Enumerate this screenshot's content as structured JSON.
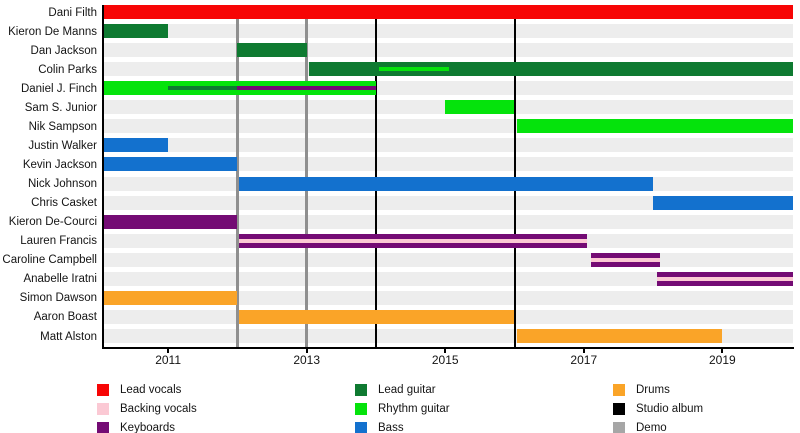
{
  "chart_data": {
    "type": "timeline",
    "description": "Band members tenure timeline with role colors, demo and studio album markers",
    "axis": {
      "start": 2010.06,
      "end": 2020.02,
      "ticks": [
        2011,
        2013,
        2015,
        2017,
        2019
      ],
      "grid": false
    },
    "events": [
      {
        "label": "Demo",
        "year": 2012.0,
        "role": "demo_line"
      },
      {
        "label": "Demo",
        "year": 2013.0,
        "role": "demo_line"
      },
      {
        "label": "Studio album",
        "year": 2014.0,
        "role": "studio_album"
      },
      {
        "label": "Studio album",
        "year": 2016.0,
        "role": "studio_album"
      }
    ],
    "members": [
      {
        "name": "Dani Filth",
        "bars": [
          {
            "role": "lead_vocals",
            "from": 2010.06,
            "to": 2020.02
          }
        ],
        "stripes": []
      },
      {
        "name": "Kieron De Manns",
        "bars": [
          {
            "role": "lead_guitar",
            "from": 2010.06,
            "to": 2011.0
          }
        ],
        "stripes": []
      },
      {
        "name": "Dan Jackson",
        "bars": [
          {
            "role": "lead_guitar",
            "from": 2012.0,
            "to": 2013.0
          }
        ],
        "stripes": []
      },
      {
        "name": "Colin Parks",
        "bars": [
          {
            "role": "lead_guitar",
            "from": 2013.03,
            "to": 2020.02
          }
        ],
        "stripes": [
          {
            "role": "rhythm_guitar",
            "from": 2014.05,
            "to": 2015.05
          }
        ]
      },
      {
        "name": "Daniel J. Finch",
        "bars": [
          {
            "role": "rhythm_guitar",
            "from": 2010.06,
            "to": 2014.0
          }
        ],
        "stripes": [
          {
            "role": "lead_guitar",
            "from": 2011.0,
            "to": 2012.0
          },
          {
            "role": "keyboards",
            "from": 2012.0,
            "to": 2014.0
          }
        ]
      },
      {
        "name": "Sam S. Junior",
        "bars": [
          {
            "role": "rhythm_guitar",
            "from": 2015.0,
            "to": 2016.0
          }
        ],
        "stripes": []
      },
      {
        "name": "Nik Sampson",
        "bars": [
          {
            "role": "rhythm_guitar",
            "from": 2016.04,
            "to": 2020.02
          }
        ],
        "stripes": []
      },
      {
        "name": "Justin Walker",
        "bars": [
          {
            "role": "bass",
            "from": 2010.06,
            "to": 2011.0
          }
        ],
        "stripes": []
      },
      {
        "name": "Kevin Jackson",
        "bars": [
          {
            "role": "bass",
            "from": 2010.06,
            "to": 2012.0
          }
        ],
        "stripes": []
      },
      {
        "name": "Nick Johnson",
        "bars": [
          {
            "role": "bass",
            "from": 2012.03,
            "to": 2018.0
          }
        ],
        "stripes": []
      },
      {
        "name": "Chris Casket",
        "bars": [
          {
            "role": "bass",
            "from": 2018.0,
            "to": 2020.02
          }
        ],
        "stripes": []
      },
      {
        "name": "Kieron De-Courci",
        "bars": [
          {
            "role": "keyboards",
            "from": 2010.06,
            "to": 2012.0
          }
        ],
        "stripes": []
      },
      {
        "name": "Lauren Francis",
        "bars": [
          {
            "role": "keyboards",
            "from": 2012.03,
            "to": 2017.05
          }
        ],
        "stripes": [
          {
            "role": "backing_vocals",
            "from": 2012.03,
            "to": 2017.05
          }
        ]
      },
      {
        "name": "Caroline Campbell",
        "bars": [
          {
            "role": "keyboards",
            "from": 2017.1,
            "to": 2018.1
          }
        ],
        "stripes": [
          {
            "role": "backing_vocals",
            "from": 2017.1,
            "to": 2018.1
          }
        ]
      },
      {
        "name": "Anabelle Iratni",
        "bars": [
          {
            "role": "keyboards",
            "from": 2018.05,
            "to": 2020.02
          }
        ],
        "stripes": [
          {
            "role": "backing_vocals",
            "from": 2018.05,
            "to": 2020.02
          }
        ]
      },
      {
        "name": "Simon Dawson",
        "bars": [
          {
            "role": "drums",
            "from": 2010.06,
            "to": 2012.0
          }
        ],
        "stripes": []
      },
      {
        "name": "Aaron Boast",
        "bars": [
          {
            "role": "drums",
            "from": 2012.03,
            "to": 2016.0
          }
        ],
        "stripes": []
      },
      {
        "name": "Matt Alston",
        "bars": [
          {
            "role": "drums",
            "from": 2016.04,
            "to": 2019.0
          }
        ],
        "stripes": []
      }
    ],
    "legend": {
      "columns": [
        {
          "items": [
            {
              "label": "Lead vocals",
              "role": "lead_vocals"
            },
            {
              "label": "Backing vocals",
              "role": "backing_vocals"
            },
            {
              "label": "Keyboards",
              "role": "keyboards"
            }
          ]
        },
        {
          "items": [
            {
              "label": "Lead guitar",
              "role": "lead_guitar"
            },
            {
              "label": "Rhythm guitar",
              "role": "rhythm_guitar"
            },
            {
              "label": "Bass",
              "role": "bass"
            }
          ]
        },
        {
          "items": [
            {
              "label": "Drums",
              "role": "drums"
            },
            {
              "label": "Studio album",
              "role": "studio_album"
            },
            {
              "label": "Demo",
              "role": "demo"
            }
          ]
        }
      ]
    },
    "colors": {
      "lead_vocals": "#F70505",
      "backing_vocals": "#FBC9D4",
      "keyboards": "#740B74",
      "lead_guitar": "#0E7A31",
      "rhythm_guitar": "#05E30C",
      "bass": "#1371CE",
      "drums": "#FAA428",
      "studio_album": "#000000",
      "demo": "#A6A6A6",
      "demo_line": "#8F8F8F",
      "row_background": "#EDEDED",
      "axis": "#000000",
      "text": "#141414"
    }
  }
}
